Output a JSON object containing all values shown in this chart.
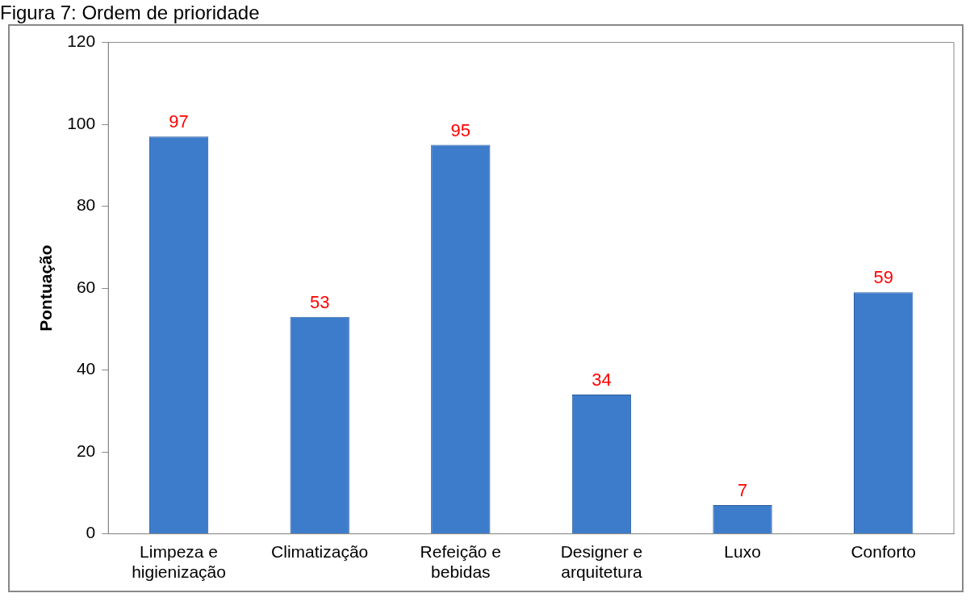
{
  "chart_data": {
    "type": "bar",
    "title": "Figura 7: Ordem de prioridade",
    "ylabel": "Pontuação",
    "categories": [
      "Limpeza e higienização",
      "Climatização",
      "Refeição e bebidas",
      "Designer e arquitetura",
      "Luxo",
      "Conforto"
    ],
    "values": [
      97,
      53,
      95,
      34,
      7,
      59
    ],
    "color": "#3d7ccb",
    "ylim": [
      0,
      120
    ],
    "yticks": [
      0,
      20,
      40,
      60,
      80,
      100,
      120
    ],
    "grid": false,
    "data_labels": true,
    "legend": false
  }
}
